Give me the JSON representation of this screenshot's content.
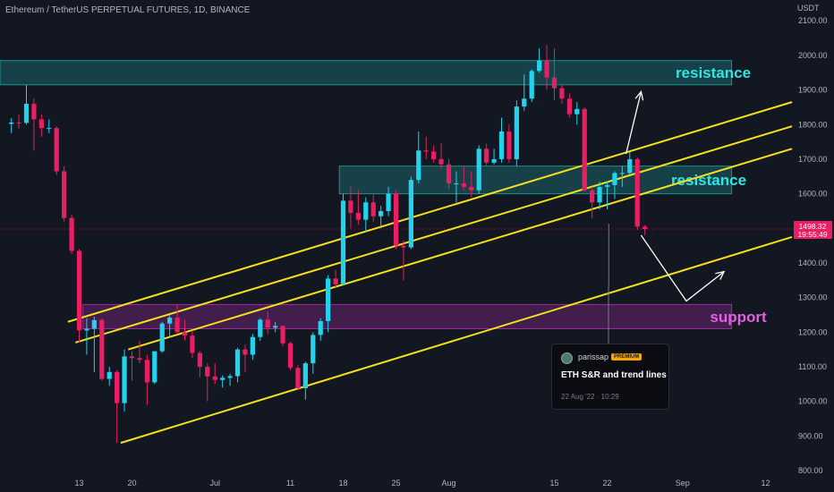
{
  "header": {
    "title": "Ethereum / TetherUS PERPETUAL FUTURES, 1D, BINANCE"
  },
  "colors": {
    "background": "#131722",
    "bull": "#22d3ee",
    "bear": "#e91e63",
    "trendline": "#f5e11b",
    "resistance_zone": "#1d8f8f",
    "support_zone": "#9c2b9c",
    "axis_text": "#b2b5be",
    "price_tag": "#e91e63"
  },
  "chart_data": {
    "type": "candlestick",
    "y_axis": {
      "unit": "USDT",
      "ticks": [
        "2100.00",
        "2000.00",
        "1900.00",
        "1800.00",
        "1700.00",
        "1600.00",
        "1500.00",
        "1400.00",
        "1300.00",
        "1200.00",
        "1100.00",
        "1000.00",
        "900.00",
        "800.00"
      ],
      "range": [
        795,
        2160
      ]
    },
    "x_axis": {
      "ticks": [
        "13",
        "20",
        "Jul",
        "11",
        "18",
        "25",
        "Aug",
        "15",
        "22",
        "Sep",
        "12"
      ],
      "range": [
        "2022-06-03",
        "2022-09-16"
      ]
    },
    "candles": [
      {
        "d": "2022-06-04",
        "o": 1802,
        "h": 1818,
        "l": 1775,
        "c": 1806
      },
      {
        "d": "2022-06-05",
        "o": 1806,
        "h": 1830,
        "l": 1788,
        "c": 1805
      },
      {
        "d": "2022-06-06",
        "o": 1805,
        "h": 1915,
        "l": 1800,
        "c": 1860
      },
      {
        "d": "2022-06-07",
        "o": 1860,
        "h": 1875,
        "l": 1725,
        "c": 1815
      },
      {
        "d": "2022-06-08",
        "o": 1815,
        "h": 1830,
        "l": 1765,
        "c": 1790
      },
      {
        "d": "2022-06-09",
        "o": 1790,
        "h": 1815,
        "l": 1775,
        "c": 1790
      },
      {
        "d": "2022-06-10",
        "o": 1790,
        "h": 1795,
        "l": 1655,
        "c": 1665
      },
      {
        "d": "2022-06-11",
        "o": 1665,
        "h": 1680,
        "l": 1520,
        "c": 1530
      },
      {
        "d": "2022-06-12",
        "o": 1530,
        "h": 1540,
        "l": 1425,
        "c": 1435
      },
      {
        "d": "2022-06-13",
        "o": 1435,
        "h": 1440,
        "l": 1170,
        "c": 1205
      },
      {
        "d": "2022-06-14",
        "o": 1205,
        "h": 1240,
        "l": 1135,
        "c": 1210
      },
      {
        "d": "2022-06-15",
        "o": 1210,
        "h": 1245,
        "l": 1085,
        "c": 1235
      },
      {
        "d": "2022-06-16",
        "o": 1235,
        "h": 1240,
        "l": 1060,
        "c": 1065
      },
      {
        "d": "2022-06-17",
        "o": 1065,
        "h": 1100,
        "l": 1045,
        "c": 1085
      },
      {
        "d": "2022-06-18",
        "o": 1085,
        "h": 1090,
        "l": 880,
        "c": 995
      },
      {
        "d": "2022-06-19",
        "o": 995,
        "h": 1150,
        "l": 970,
        "c": 1130
      },
      {
        "d": "2022-06-20",
        "o": 1130,
        "h": 1145,
        "l": 1060,
        "c": 1125
      },
      {
        "d": "2022-06-21",
        "o": 1125,
        "h": 1175,
        "l": 1110,
        "c": 1120
      },
      {
        "d": "2022-06-22",
        "o": 1120,
        "h": 1135,
        "l": 990,
        "c": 1055
      },
      {
        "d": "2022-06-23",
        "o": 1055,
        "h": 1140,
        "l": 1050,
        "c": 1145
      },
      {
        "d": "2022-06-24",
        "o": 1145,
        "h": 1230,
        "l": 1140,
        "c": 1225
      },
      {
        "d": "2022-06-25",
        "o": 1225,
        "h": 1250,
        "l": 1185,
        "c": 1242
      },
      {
        "d": "2022-06-26",
        "o": 1242,
        "h": 1280,
        "l": 1195,
        "c": 1200
      },
      {
        "d": "2022-06-27",
        "o": 1200,
        "h": 1235,
        "l": 1175,
        "c": 1190
      },
      {
        "d": "2022-06-28",
        "o": 1190,
        "h": 1205,
        "l": 1125,
        "c": 1140
      },
      {
        "d": "2022-06-29",
        "o": 1140,
        "h": 1145,
        "l": 1070,
        "c": 1100
      },
      {
        "d": "2022-06-30",
        "o": 1100,
        "h": 1110,
        "l": 1000,
        "c": 1072
      },
      {
        "d": "2022-07-01",
        "o": 1072,
        "h": 1110,
        "l": 1050,
        "c": 1062
      },
      {
        "d": "2022-07-02",
        "o": 1062,
        "h": 1075,
        "l": 1040,
        "c": 1068
      },
      {
        "d": "2022-07-03",
        "o": 1068,
        "h": 1080,
        "l": 1045,
        "c": 1073
      },
      {
        "d": "2022-07-04",
        "o": 1073,
        "h": 1155,
        "l": 1055,
        "c": 1150
      },
      {
        "d": "2022-07-05",
        "o": 1150,
        "h": 1165,
        "l": 1085,
        "c": 1135
      },
      {
        "d": "2022-07-06",
        "o": 1135,
        "h": 1195,
        "l": 1120,
        "c": 1186
      },
      {
        "d": "2022-07-07",
        "o": 1186,
        "h": 1240,
        "l": 1175,
        "c": 1236
      },
      {
        "d": "2022-07-08",
        "o": 1236,
        "h": 1260,
        "l": 1195,
        "c": 1213
      },
      {
        "d": "2022-07-09",
        "o": 1213,
        "h": 1230,
        "l": 1200,
        "c": 1218
      },
      {
        "d": "2022-07-10",
        "o": 1218,
        "h": 1220,
        "l": 1160,
        "c": 1168
      },
      {
        "d": "2022-07-11",
        "o": 1168,
        "h": 1172,
        "l": 1090,
        "c": 1097
      },
      {
        "d": "2022-07-12",
        "o": 1097,
        "h": 1105,
        "l": 1032,
        "c": 1038
      },
      {
        "d": "2022-07-13",
        "o": 1038,
        "h": 1115,
        "l": 1005,
        "c": 1110
      },
      {
        "d": "2022-07-14",
        "o": 1110,
        "h": 1200,
        "l": 1080,
        "c": 1192
      },
      {
        "d": "2022-07-15",
        "o": 1192,
        "h": 1240,
        "l": 1175,
        "c": 1232
      },
      {
        "d": "2022-07-16",
        "o": 1232,
        "h": 1365,
        "l": 1200,
        "c": 1355
      },
      {
        "d": "2022-07-17",
        "o": 1355,
        "h": 1380,
        "l": 1330,
        "c": 1338
      },
      {
        "d": "2022-07-18",
        "o": 1338,
        "h": 1600,
        "l": 1335,
        "c": 1580
      },
      {
        "d": "2022-07-19",
        "o": 1580,
        "h": 1620,
        "l": 1500,
        "c": 1545
      },
      {
        "d": "2022-07-20",
        "o": 1545,
        "h": 1610,
        "l": 1510,
        "c": 1525
      },
      {
        "d": "2022-07-21",
        "o": 1525,
        "h": 1590,
        "l": 1490,
        "c": 1575
      },
      {
        "d": "2022-07-22",
        "o": 1575,
        "h": 1600,
        "l": 1520,
        "c": 1535
      },
      {
        "d": "2022-07-23",
        "o": 1535,
        "h": 1565,
        "l": 1500,
        "c": 1550
      },
      {
        "d": "2022-07-24",
        "o": 1550,
        "h": 1620,
        "l": 1535,
        "c": 1600
      },
      {
        "d": "2022-07-25",
        "o": 1600,
        "h": 1610,
        "l": 1440,
        "c": 1450
      },
      {
        "d": "2022-07-26",
        "o": 1450,
        "h": 1465,
        "l": 1350,
        "c": 1445
      },
      {
        "d": "2022-07-27",
        "o": 1445,
        "h": 1650,
        "l": 1440,
        "c": 1640
      },
      {
        "d": "2022-07-28",
        "o": 1640,
        "h": 1780,
        "l": 1630,
        "c": 1725
      },
      {
        "d": "2022-07-29",
        "o": 1725,
        "h": 1765,
        "l": 1700,
        "c": 1722
      },
      {
        "d": "2022-07-30",
        "o": 1722,
        "h": 1740,
        "l": 1690,
        "c": 1700
      },
      {
        "d": "2022-07-31",
        "o": 1700,
        "h": 1745,
        "l": 1670,
        "c": 1685
      },
      {
        "d": "2022-08-01",
        "o": 1685,
        "h": 1700,
        "l": 1615,
        "c": 1630
      },
      {
        "d": "2022-08-02",
        "o": 1630,
        "h": 1665,
        "l": 1575,
        "c": 1630
      },
      {
        "d": "2022-08-03",
        "o": 1630,
        "h": 1680,
        "l": 1610,
        "c": 1620
      },
      {
        "d": "2022-08-04",
        "o": 1620,
        "h": 1665,
        "l": 1590,
        "c": 1610
      },
      {
        "d": "2022-08-05",
        "o": 1610,
        "h": 1740,
        "l": 1600,
        "c": 1730
      },
      {
        "d": "2022-08-06",
        "o": 1730,
        "h": 1745,
        "l": 1680,
        "c": 1690
      },
      {
        "d": "2022-08-07",
        "o": 1690,
        "h": 1730,
        "l": 1685,
        "c": 1700
      },
      {
        "d": "2022-08-08",
        "o": 1700,
        "h": 1820,
        "l": 1690,
        "c": 1780
      },
      {
        "d": "2022-08-09",
        "o": 1780,
        "h": 1800,
        "l": 1690,
        "c": 1700
      },
      {
        "d": "2022-08-10",
        "o": 1700,
        "h": 1870,
        "l": 1680,
        "c": 1852
      },
      {
        "d": "2022-08-11",
        "o": 1852,
        "h": 1945,
        "l": 1840,
        "c": 1875
      },
      {
        "d": "2022-08-12",
        "o": 1875,
        "h": 1960,
        "l": 1865,
        "c": 1955
      },
      {
        "d": "2022-08-13",
        "o": 1955,
        "h": 2020,
        "l": 1950,
        "c": 1985
      },
      {
        "d": "2022-08-14",
        "o": 1985,
        "h": 2030,
        "l": 1900,
        "c": 1936
      },
      {
        "d": "2022-08-15",
        "o": 1936,
        "h": 2020,
        "l": 1870,
        "c": 1905
      },
      {
        "d": "2022-08-16",
        "o": 1905,
        "h": 1915,
        "l": 1860,
        "c": 1875
      },
      {
        "d": "2022-08-17",
        "o": 1875,
        "h": 1890,
        "l": 1820,
        "c": 1830
      },
      {
        "d": "2022-08-18",
        "o": 1830,
        "h": 1865,
        "l": 1800,
        "c": 1845
      },
      {
        "d": "2022-08-19",
        "o": 1845,
        "h": 1850,
        "l": 1605,
        "c": 1610
      },
      {
        "d": "2022-08-20",
        "o": 1610,
        "h": 1620,
        "l": 1530,
        "c": 1575
      },
      {
        "d": "2022-08-21",
        "o": 1575,
        "h": 1635,
        "l": 1555,
        "c": 1620
      },
      {
        "d": "2022-08-22",
        "o": 1620,
        "h": 1635,
        "l": 1555,
        "c": 1625
      },
      {
        "d": "2022-08-23",
        "o": 1625,
        "h": 1665,
        "l": 1585,
        "c": 1660
      },
      {
        "d": "2022-08-24",
        "o": 1660,
        "h": 1680,
        "l": 1620,
        "c": 1660
      },
      {
        "d": "2022-08-25",
        "o": 1660,
        "h": 1720,
        "l": 1655,
        "c": 1700
      },
      {
        "d": "2022-08-26",
        "o": 1700,
        "h": 1705,
        "l": 1495,
        "c": 1505
      },
      {
        "d": "2022-08-27",
        "o": 1505,
        "h": 1510,
        "l": 1480,
        "c": 1498
      }
    ],
    "last_price": {
      "value": "1498.32",
      "countdown": "19:55:49"
    },
    "zones": [
      {
        "label": "resistance",
        "from": 1915,
        "to": 1985,
        "start": "2022-06-03",
        "end": "2022-09-08"
      },
      {
        "label": "resistance",
        "from": 1600,
        "to": 1680,
        "start": "2022-07-18",
        "end": "2022-09-08"
      },
      {
        "label": "support",
        "from": 1210,
        "to": 1280,
        "start": "2022-06-14",
        "end": "2022-09-08"
      }
    ],
    "trend_lines": [
      {
        "x1": "2022-06-12",
        "y1": 1230,
        "x2": "2022-09-16",
        "y2": 1865
      },
      {
        "x1": "2022-06-13",
        "y1": 1170,
        "x2": "2022-09-16",
        "y2": 1795
      },
      {
        "x1": "2022-06-20",
        "y1": 1150,
        "x2": "2022-09-16",
        "y2": 1730
      },
      {
        "x1": "2022-06-19",
        "y1": 880,
        "x2": "2022-09-16",
        "y2": 1475
      }
    ],
    "arrows": [
      {
        "points": [
          [
            "2022-08-25",
            1715
          ],
          [
            "2022-08-27",
            1895
          ]
        ]
      },
      {
        "points": [
          [
            "2022-08-27",
            1480
          ],
          [
            "2022-09-02",
            1290
          ],
          [
            "2022-09-07",
            1375
          ]
        ]
      }
    ]
  },
  "idea_card": {
    "author": "parissap",
    "badge": "PREMIUM",
    "title": "ETH S&R and trend lines",
    "date": "22 Aug '22 · 10:29"
  }
}
